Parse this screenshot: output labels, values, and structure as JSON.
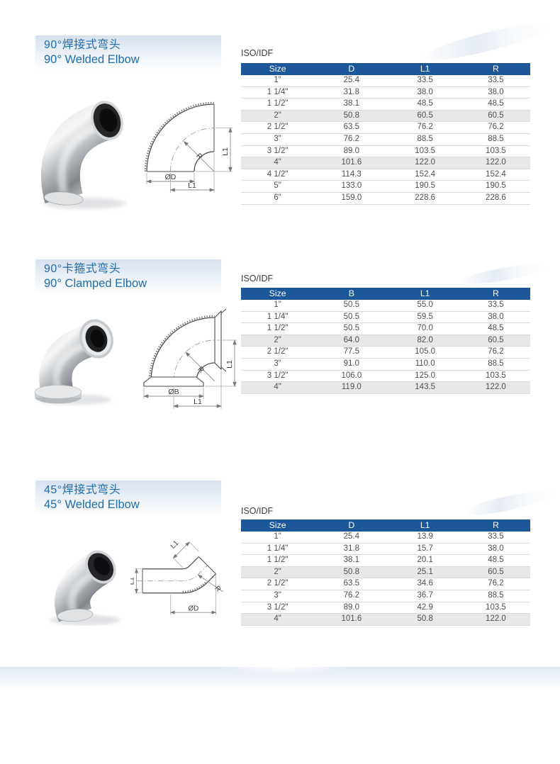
{
  "colors": {
    "table_header_bg": "#1b5799",
    "table_header_text": "#ffffff",
    "title_text": "#1e6dac",
    "shaded_row_bg": "#e8e8e8",
    "banner_top": "#d7e0ed"
  },
  "sections": [
    {
      "title_zh": "90°焊接式弯头",
      "title_en": "90° Welded Elbow",
      "standard": "ISO/IDF",
      "drawing_labels": {
        "r": "R",
        "dia": "ØD",
        "l1": "L1"
      },
      "table": {
        "headers": [
          "Size",
          "D",
          "L1",
          "R"
        ],
        "rows": [
          [
            "1\"",
            "25.4",
            "33.5",
            "33.5"
          ],
          [
            "1 1/4\"",
            "31.8",
            "38.0",
            "38.0"
          ],
          [
            "1 1/2\"",
            "38.1",
            "48.5",
            "48.5"
          ],
          [
            "2\"",
            "50.8",
            "60.5",
            "60.5"
          ],
          [
            "2 1/2\"",
            "63.5",
            "76.2",
            "76.2"
          ],
          [
            "3\"",
            "76.2",
            "88.5",
            "88.5"
          ],
          [
            "3 1/2\"",
            "89.0",
            "103.5",
            "103.5"
          ],
          [
            "4\"",
            "101.6",
            "122.0",
            "122.0"
          ],
          [
            "4 1/2\"",
            "114.3",
            "152.4",
            "152.4"
          ],
          [
            "5\"",
            "133.0",
            "190.5",
            "190.5"
          ],
          [
            "6\"",
            "159.0",
            "228.6",
            "228.6"
          ]
        ],
        "shaded_rows": [
          3,
          7
        ]
      }
    },
    {
      "title_zh": "90°卡箍式弯头",
      "title_en": "90° Clamped Elbow",
      "standard": "ISO/IDF",
      "drawing_labels": {
        "r": "R",
        "dia": "ØB",
        "l1": "L1"
      },
      "table": {
        "headers": [
          "Size",
          "B",
          "L1",
          "R"
        ],
        "rows": [
          [
            "1\"",
            "50.5",
            "55.0",
            "33.5"
          ],
          [
            "1 1/4\"",
            "50.5",
            "59.5",
            "38.0"
          ],
          [
            "1 1/2\"",
            "50.5",
            "70.0",
            "48.5"
          ],
          [
            "2\"",
            "64.0",
            "82.0",
            "60.5"
          ],
          [
            "2 1/2\"",
            "77.5",
            "105.0",
            "76.2"
          ],
          [
            "3\"",
            "91.0",
            "110.0",
            "88.5"
          ],
          [
            "3 1/2\"",
            "106.0",
            "125.0",
            "103.5"
          ],
          [
            "4\"",
            "119.0",
            "143.5",
            "122.0"
          ]
        ],
        "shaded_rows": [
          3,
          7
        ]
      }
    },
    {
      "title_zh": "45°焊接式弯头",
      "title_en": "45° Welded Elbow",
      "standard": "ISO/IDF",
      "drawing_labels": {
        "r": "R",
        "dia": "ØD",
        "l1": "L1"
      },
      "table": {
        "headers": [
          "Size",
          "D",
          "L1",
          "R"
        ],
        "rows": [
          [
            "1\"",
            "25.4",
            "13.9",
            "33.5"
          ],
          [
            "1 1/4\"",
            "31.8",
            "15.7",
            "38.0"
          ],
          [
            "1 1/2\"",
            "38.1",
            "20.1",
            "48.5"
          ],
          [
            "2\"",
            "50.8",
            "25.1",
            "60.5"
          ],
          [
            "2 1/2\"",
            "63.5",
            "34.6",
            "76.2"
          ],
          [
            "3\"",
            "76.2",
            "36.7",
            "88.5"
          ],
          [
            "3 1/2\"",
            "89.0",
            "42.9",
            "103.5"
          ],
          [
            "4\"",
            "101.6",
            "50.8",
            "122.0"
          ]
        ],
        "shaded_rows": [
          3,
          7
        ]
      }
    }
  ]
}
